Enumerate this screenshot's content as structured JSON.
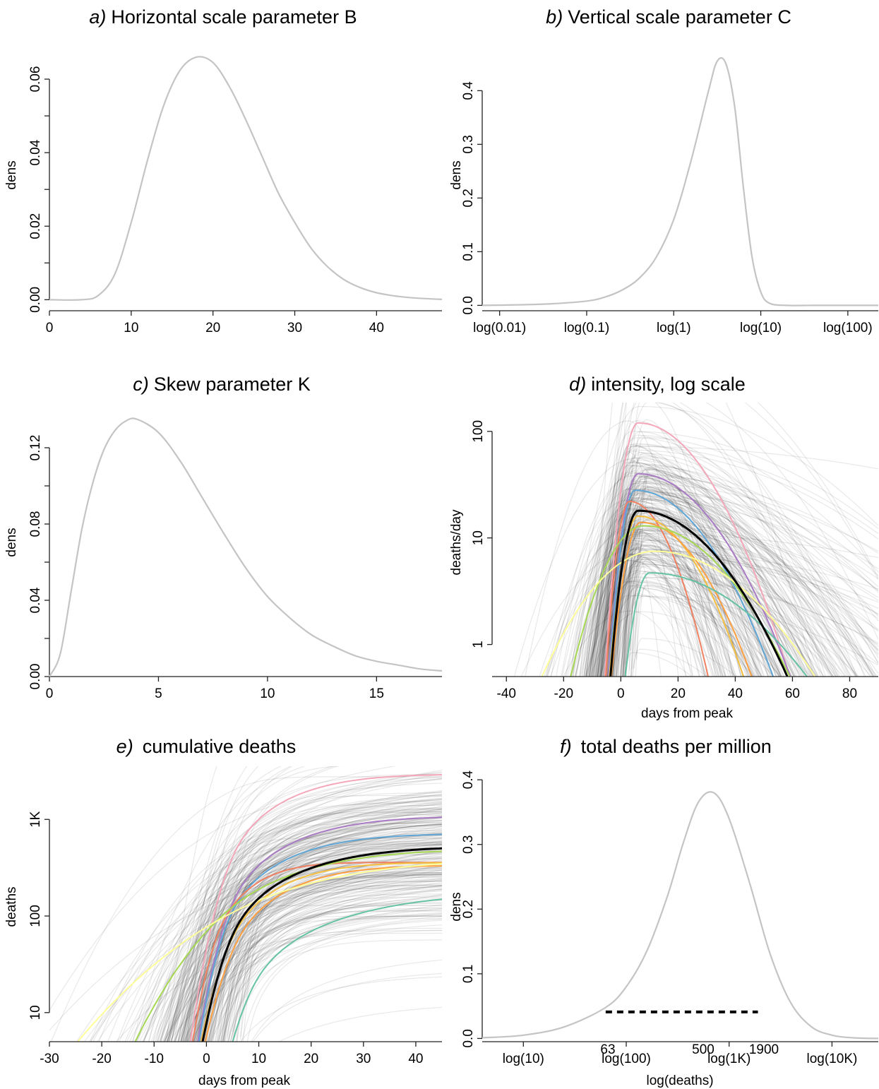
{
  "colors": {
    "density": "#c4c4c4",
    "axis": "#222222",
    "median": "#000000",
    "highlight": [
      "#f4a7b9",
      "#a97bc4",
      "#5fa6d6",
      "#f08060",
      "#f5c040",
      "#ffa040",
      "#a6d854",
      "#ffff99",
      "#66c2a5",
      "#8da0cb"
    ]
  },
  "chart_data": [
    {
      "id": "a",
      "type": "line",
      "title_prefix": "a)",
      "title": "Horizontal scale parameter B",
      "xlabel": "",
      "ylabel": "dens",
      "xlim": [
        0,
        48
      ],
      "ylim": [
        -0.003,
        0.07
      ],
      "xticks": [
        0,
        10,
        20,
        30,
        40
      ],
      "xtick_labels": [
        "0",
        "10",
        "20",
        "30",
        "40"
      ],
      "yticks": [
        0,
        0.01,
        0.02,
        0.03,
        0.04,
        0.05,
        0.06
      ],
      "ytick_labels": [
        "0.00",
        "",
        "0.02",
        "",
        "0.04",
        "",
        "0.06"
      ],
      "curve": {
        "shape": "density",
        "x": [
          0,
          4,
          6,
          8,
          10,
          12,
          14,
          16,
          18,
          20,
          22,
          24,
          26,
          28,
          30,
          32,
          34,
          36,
          38,
          40,
          42,
          44,
          46,
          48
        ],
        "y": [
          0,
          0,
          0.0012,
          0.007,
          0.021,
          0.038,
          0.053,
          0.0625,
          0.066,
          0.0645,
          0.058,
          0.049,
          0.039,
          0.029,
          0.021,
          0.014,
          0.009,
          0.0055,
          0.0033,
          0.0019,
          0.0011,
          0.0006,
          0.0003,
          0.0001
        ]
      }
    },
    {
      "id": "b",
      "type": "line",
      "title_prefix": "b)",
      "title": "Vertical scale parameter C",
      "xlabel": "",
      "ylabel": "dens",
      "xlim": [
        -2.2,
        2.35
      ],
      "ylim": [
        -0.01,
        0.49
      ],
      "xticks": [
        -2,
        -1,
        0,
        1,
        2
      ],
      "xtick_labels": [
        "log(0.01)",
        "log(0.1)",
        "log(1)",
        "log(10)",
        "log(100)"
      ],
      "yticks": [
        0,
        0.1,
        0.2,
        0.3,
        0.4
      ],
      "ytick_labels": [
        "0.0",
        "0.1",
        "0.2",
        "0.3",
        "0.4"
      ],
      "curve": {
        "shape": "density",
        "x": [
          -2.2,
          -1.8,
          -1.4,
          -1.0,
          -0.8,
          -0.6,
          -0.4,
          -0.2,
          0.0,
          0.2,
          0.4,
          0.5,
          0.6,
          0.7,
          0.8,
          0.9,
          1.0,
          1.1,
          1.3,
          1.6,
          2.0,
          2.35
        ],
        "y": [
          0,
          0.001,
          0.003,
          0.008,
          0.015,
          0.028,
          0.05,
          0.09,
          0.16,
          0.27,
          0.4,
          0.455,
          0.45,
          0.37,
          0.22,
          0.09,
          0.025,
          0.004,
          0,
          0,
          0,
          0
        ]
      }
    },
    {
      "id": "c",
      "type": "line",
      "title_prefix": "c)",
      "title": "Skew parameter K",
      "xlabel": "",
      "ylabel": "dens",
      "xlim": [
        0,
        18
      ],
      "ylim": [
        0,
        0.14
      ],
      "xticks": [
        0,
        5,
        10,
        15
      ],
      "xtick_labels": [
        "0",
        "5",
        "10",
        "15"
      ],
      "yticks": [
        0,
        0.02,
        0.04,
        0.06,
        0.08,
        0.1,
        0.12
      ],
      "ytick_labels": [
        "0.00",
        "",
        "0.04",
        "",
        "0.08",
        "",
        "0.12"
      ],
      "curve": {
        "shape": "density",
        "x": [
          0,
          0.5,
          1,
          1.5,
          2,
          2.5,
          3,
          3.5,
          4,
          5,
          6,
          7,
          8,
          9,
          10,
          11,
          12,
          13,
          14,
          15,
          16,
          17,
          18
        ],
        "y": [
          0,
          0.012,
          0.045,
          0.078,
          0.102,
          0.119,
          0.129,
          0.134,
          0.135,
          0.128,
          0.113,
          0.094,
          0.075,
          0.057,
          0.042,
          0.031,
          0.022,
          0.016,
          0.011,
          0.008,
          0.006,
          0.004,
          0.003
        ]
      }
    },
    {
      "id": "d",
      "type": "line",
      "title_prefix": "d)",
      "title": "intensity, log scale",
      "xlabel": "days from peak",
      "ylabel": "deaths/day",
      "xlim": [
        -45,
        90
      ],
      "ylim": [
        0.5,
        160
      ],
      "log_y": true,
      "xticks": [
        -40,
        -20,
        0,
        20,
        40,
        60,
        80
      ],
      "xtick_labels": [
        "-40",
        "-20",
        "0",
        "20",
        "40",
        "60",
        "80"
      ],
      "yticks": [
        1,
        10,
        100
      ],
      "ytick_labels": [
        "1",
        "10",
        "100"
      ],
      "curve_model": "a*exp(-(x-p)^2/(2*s^2)) for x<p (s=sl), else s=sr",
      "highlighted": [
        {
          "color": "#f4a7b9",
          "a": 120,
          "p": 6,
          "sl": 3.5,
          "sr": 16
        },
        {
          "color": "#a97bc4",
          "a": 40,
          "p": 6,
          "sl": 3.5,
          "sr": 18
        },
        {
          "color": "#5fa6d6",
          "a": 28,
          "p": 5,
          "sl": 3.2,
          "sr": 17
        },
        {
          "color": "#f08060",
          "a": 22,
          "p": 3,
          "sl": 3.0,
          "sr": 10
        },
        {
          "color": "#f5c040",
          "a": 16,
          "p": 6,
          "sl": 3.8,
          "sr": 14
        },
        {
          "color": "#ffa040",
          "a": 14,
          "p": 7,
          "sl": 4.0,
          "sr": 15
        },
        {
          "color": "#a6d854",
          "a": 13,
          "p": 8,
          "sl": 10,
          "sr": 20
        },
        {
          "color": "#ffff99",
          "a": 7.5,
          "p": 12,
          "sl": 17,
          "sr": 24
        },
        {
          "color": "#66c2a5",
          "a": 4.7,
          "p": 10,
          "sl": 4.0,
          "sr": 26
        }
      ],
      "median": {
        "color": "#000000",
        "a": 18,
        "p": 6,
        "sl": 3.6,
        "sr": 19.5
      }
    },
    {
      "id": "e",
      "type": "line",
      "title_prefix": "e)",
      "title": "cumulative deaths",
      "xlabel": "days from peak",
      "ylabel": "deaths",
      "xlim": [
        -30,
        45
      ],
      "ylim": [
        5,
        3000
      ],
      "log_y": true,
      "xticks": [
        -30,
        -20,
        -10,
        0,
        10,
        20,
        30,
        40
      ],
      "xtick_labels": [
        "-30",
        "-20",
        "-10",
        "0",
        "10",
        "20",
        "30",
        "40"
      ],
      "yticks": [
        10,
        100,
        1000
      ],
      "ytick_labels": [
        "10",
        "100",
        "1K"
      ],
      "curve_model": "integral of the intensity curve from panel d",
      "highlighted_from": "d"
    },
    {
      "id": "f",
      "type": "line",
      "title_prefix": "f)",
      "title": "total deaths per million",
      "xlabel": "log(deaths)",
      "ylabel": "dens",
      "xlim": [
        0.6,
        4.45
      ],
      "ylim": [
        -0.005,
        0.41
      ],
      "xticks": [
        1,
        2,
        3,
        4
      ],
      "xtick_labels": [
        "log(10)",
        "log(100)",
        "log(1K)",
        "log(10K)"
      ],
      "yticks": [
        0,
        0.1,
        0.2,
        0.3,
        0.4
      ],
      "ytick_labels": [
        "0.0",
        "0.1",
        "0.2",
        "0.3",
        "0.4"
      ],
      "curve": {
        "shape": "density",
        "x": [
          0.6,
          1.0,
          1.4,
          1.8,
          2.0,
          2.2,
          2.4,
          2.55,
          2.7,
          2.85,
          3.0,
          3.2,
          3.4,
          3.6,
          3.8,
          4.0,
          4.2,
          4.45
        ],
        "y": [
          0.001,
          0.005,
          0.018,
          0.048,
          0.08,
          0.135,
          0.22,
          0.3,
          0.365,
          0.38,
          0.34,
          0.24,
          0.13,
          0.055,
          0.018,
          0.005,
          0.001,
          0
        ]
      },
      "interval": {
        "from": 1.8,
        "to": 3.28
      },
      "annotations": [
        "63",
        "500",
        "1900"
      ]
    }
  ]
}
